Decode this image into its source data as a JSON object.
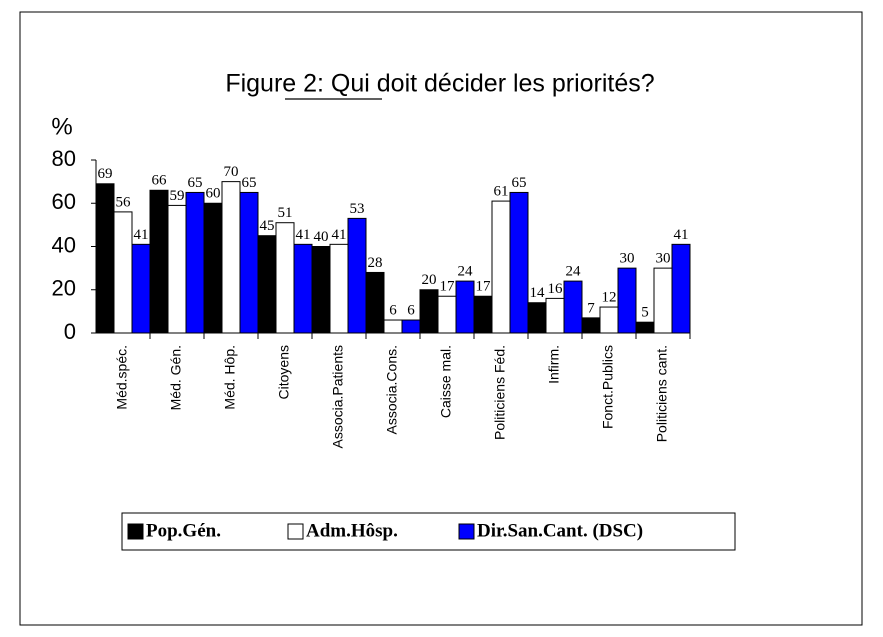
{
  "chart_data": {
    "type": "bar",
    "title": "Figure 2: Qui doit décider les priorités?",
    "y_label": "%",
    "categories": [
      "Méd.spéc.",
      "Méd. Gén.",
      "Méd. Hôp.",
      "Citoyens",
      "Associa.Patients",
      "Associa.Cons.",
      "Caisse mal.",
      "Politiciens Féd.",
      "Infirm.",
      "Fonct.Publics",
      "Politiciens cant."
    ],
    "series": [
      {
        "name": "Pop.Gén.",
        "color": "#000000",
        "values": [
          69,
          66,
          60,
          45,
          40,
          28,
          20,
          17,
          14,
          7,
          5
        ]
      },
      {
        "name": "Adm.Hôsp.",
        "color": "#ffffff",
        "values": [
          56,
          59,
          70,
          51,
          41,
          6,
          17,
          61,
          16,
          12,
          30
        ]
      },
      {
        "name": "Dir.San.Cant. (DSC)",
        "color": "#0000ff",
        "values": [
          41,
          65,
          65,
          41,
          53,
          6,
          24,
          65,
          24,
          30,
          41
        ]
      }
    ],
    "ylim": [
      0,
      80
    ],
    "yticks": [
      0,
      20,
      40,
      60,
      80
    ],
    "legend": "bottom"
  }
}
